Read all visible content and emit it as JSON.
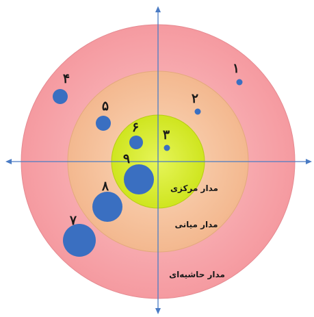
{
  "rings": {
    "outer": {
      "label": "مدار حاشیه‌ای",
      "fill": "#f7a8ad",
      "stroke": "#e58a91"
    },
    "middle": {
      "label": "مدار میانی",
      "fill": "#f7c9a3",
      "stroke": "#e3a97c"
    },
    "center": {
      "label": "مدار مرکزی",
      "fill": "#d7ee2a",
      "stroke": "#b5cd14"
    }
  },
  "axes": {
    "color": "#4a7bc4"
  },
  "dot_color": "#3a6fc1",
  "points": [
    {
      "label": "۱"
    },
    {
      "label": "۲"
    },
    {
      "label": "۳"
    },
    {
      "label": "۴"
    },
    {
      "label": "۵"
    },
    {
      "label": "۶"
    },
    {
      "label": "۷"
    },
    {
      "label": "۸"
    },
    {
      "label": "۹"
    }
  ]
}
